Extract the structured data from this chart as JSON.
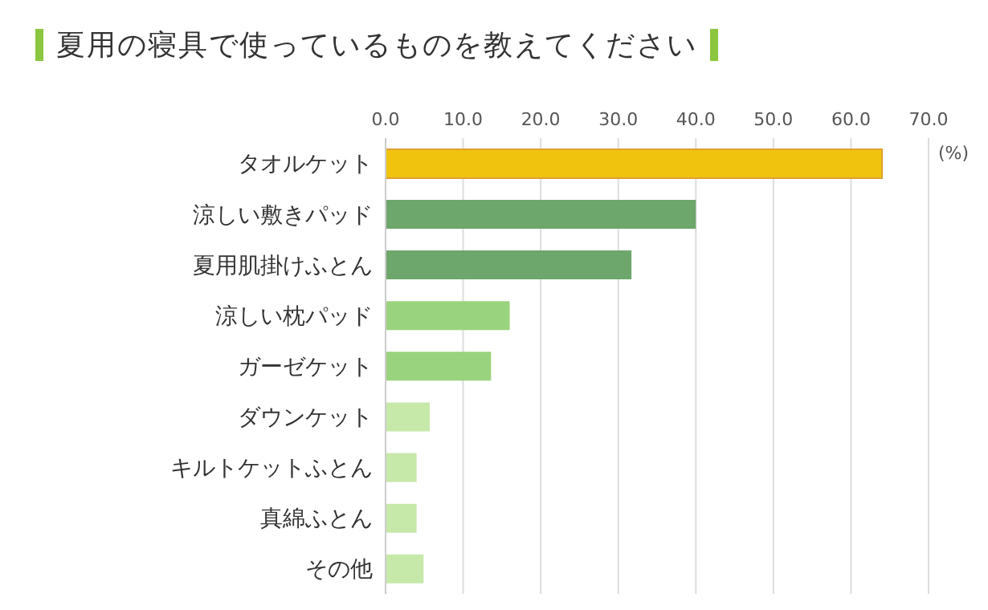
{
  "chart_data": {
    "type": "bar",
    "orientation": "horizontal",
    "title": "夏用の寝具で使っているものを教えてください",
    "xlabel": "(%)",
    "categories": [
      "タオルケット",
      "涼しい敷きパッド",
      "夏用肌掛けふとん",
      "涼しい枕パッド",
      "ガーゼケット",
      "ダウンケット",
      "キルトケットふとん",
      "真綿ふとん",
      "その他"
    ],
    "values": [
      64.0,
      40.0,
      31.7,
      16.0,
      13.6,
      5.7,
      4.0,
      4.0,
      4.9
    ],
    "colors": [
      "#f0c30f",
      "#6ea76c",
      "#6ea76c",
      "#9ad37d",
      "#9ad37d",
      "#c6e9aa",
      "#c6e9aa",
      "#c6e9aa",
      "#c6e9aa"
    ],
    "xlim": [
      0,
      70
    ],
    "xticks": [
      {
        "value": 0,
        "label": "0.0"
      },
      {
        "value": 10,
        "label": "10.0"
      },
      {
        "value": 20,
        "label": "20.0"
      },
      {
        "value": 30,
        "label": "30.0"
      },
      {
        "value": 40,
        "label": "40.0"
      },
      {
        "value": 50,
        "label": "50.0"
      },
      {
        "value": 60,
        "label": "60.0"
      },
      {
        "value": 70,
        "label": "70.0"
      }
    ],
    "grid": "x",
    "legend": false
  }
}
